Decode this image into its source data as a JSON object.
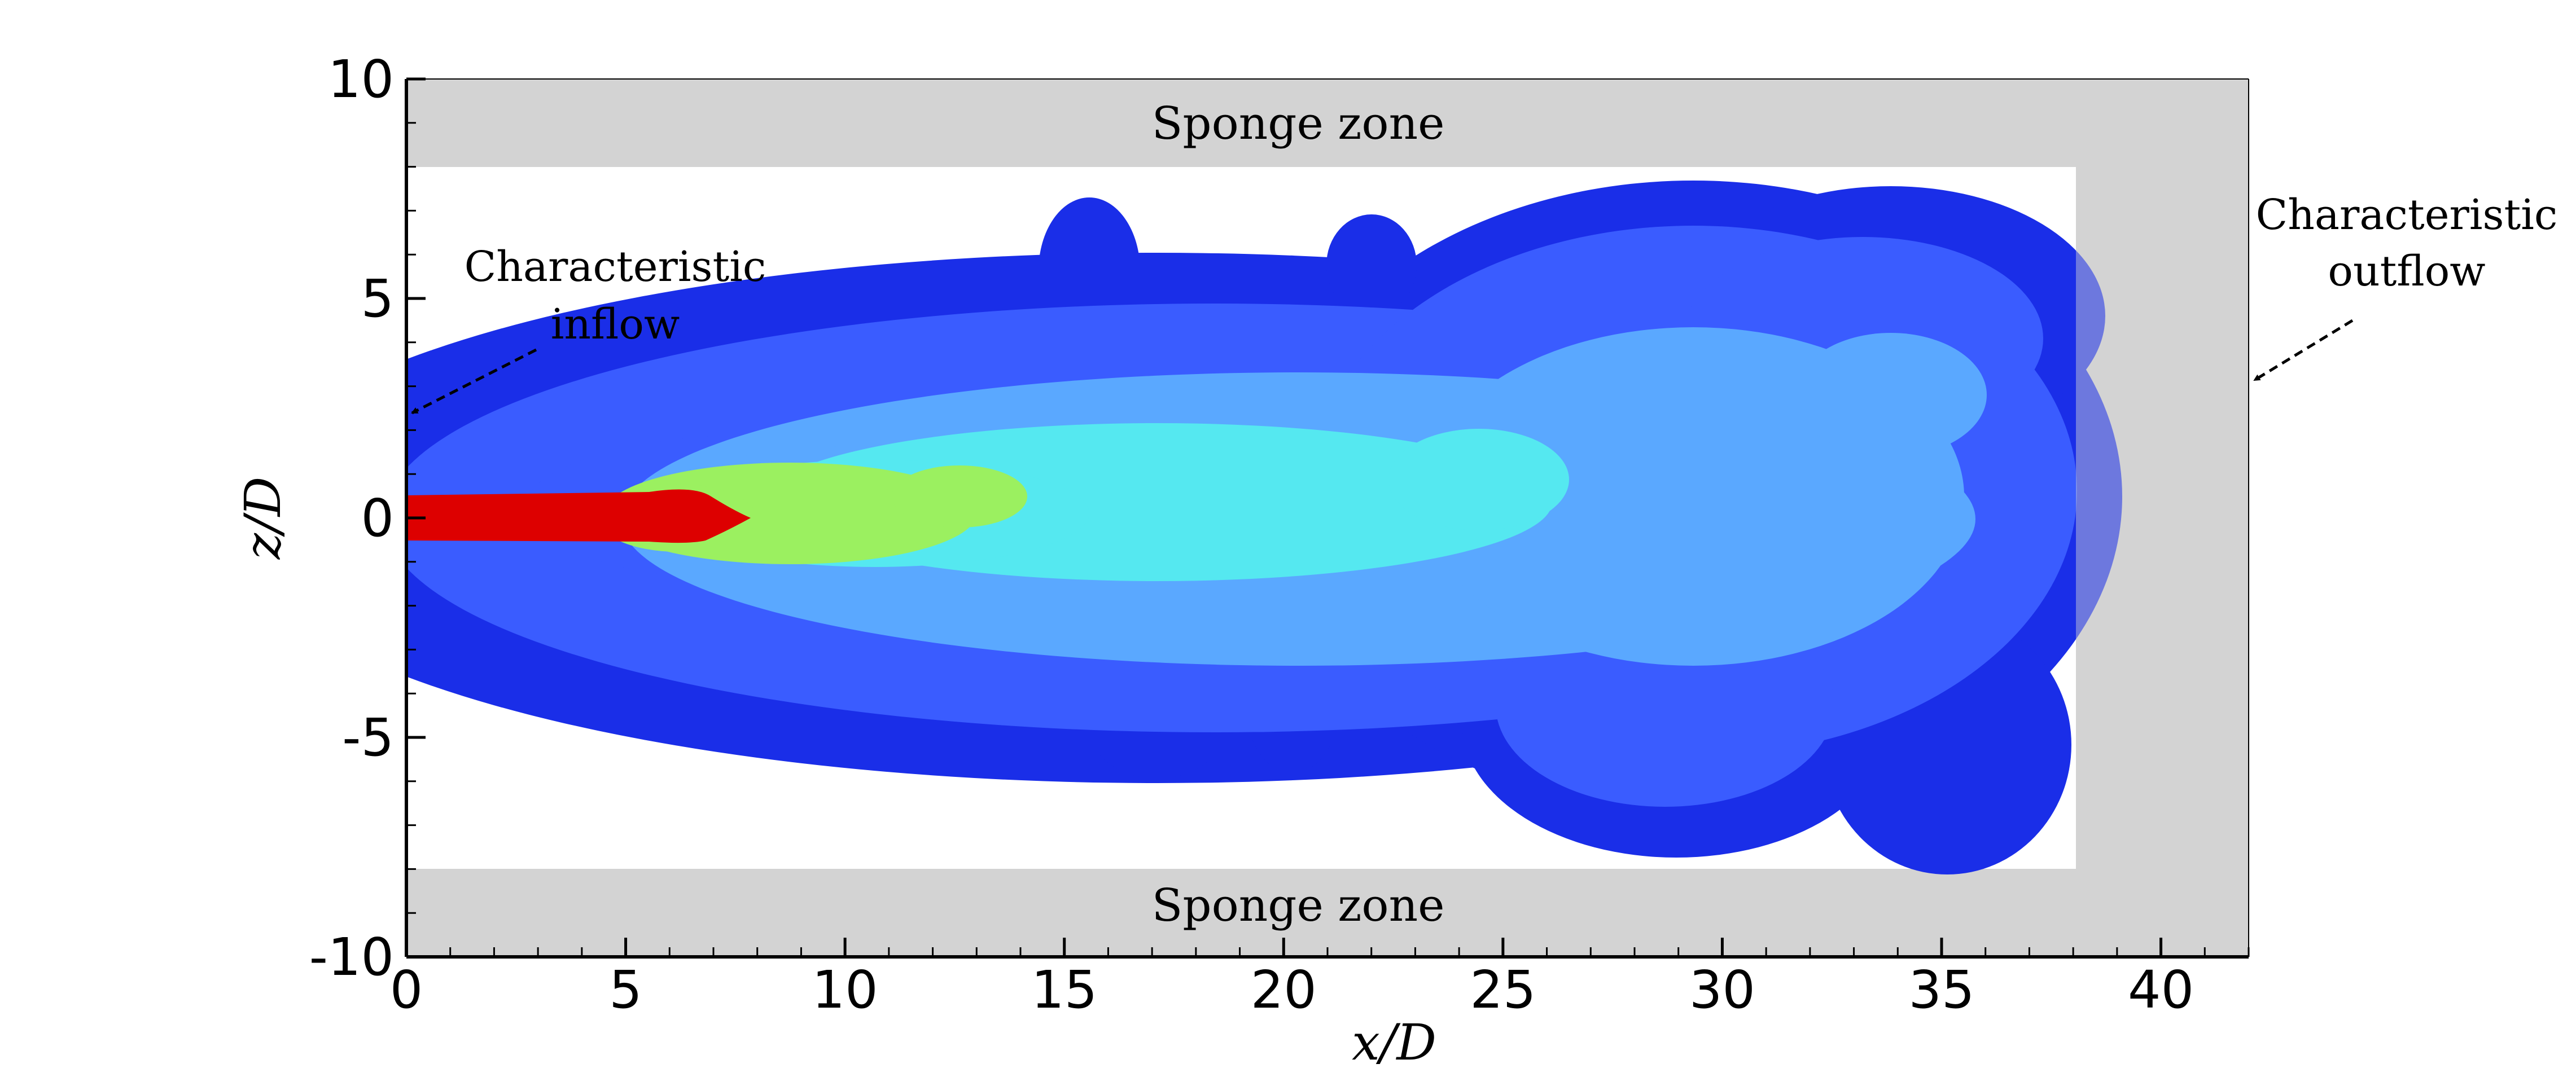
{
  "chart_data": {
    "type": "heatmap",
    "title": "",
    "xlabel": "x/D",
    "ylabel": "z/D",
    "xlim": [
      0,
      42
    ],
    "ylim": [
      -10,
      10
    ],
    "x_ticks": [
      "0",
      "5",
      "10",
      "15",
      "20",
      "25",
      "30",
      "35",
      "40"
    ],
    "y_ticks": [
      "10",
      "5",
      "0",
      "-5",
      "-10"
    ],
    "regions": [
      {
        "label": "Sponge zone",
        "x_range": [
          0,
          42
        ],
        "z_range": [
          8,
          10
        ]
      },
      {
        "label": "Sponge zone",
        "x_range": [
          0,
          42
        ],
        "z_range": [
          -10,
          -8
        ]
      },
      {
        "label": "",
        "x_range": [
          38,
          42
        ],
        "z_range": [
          -8,
          8
        ]
      }
    ],
    "annotations": [
      {
        "lines": [
          "Characteristic",
          "inflow"
        ],
        "points_to_x": 0,
        "points_to_z": 2.4
      },
      {
        "lines": [
          "Characteristic",
          "outflow"
        ],
        "points_to_x": 42,
        "points_to_z": 3.2
      }
    ],
    "colors": {
      "core": "#dd0000",
      "high": "#9bf060",
      "mid_high": "#55e8f0",
      "mid": "#5aa8ff",
      "low": "#3a5cff",
      "edge": "#1a2ee8",
      "sponge": "#d3d3d3"
    }
  }
}
